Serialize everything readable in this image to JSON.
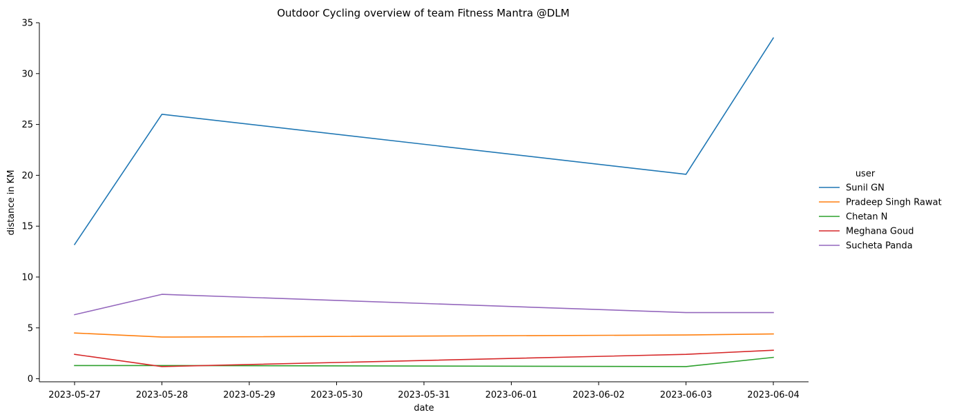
{
  "chart_data": {
    "type": "line",
    "title": "Outdoor Cycling overview of team Fitness Mantra @DLM",
    "xlabel": "date",
    "ylabel": "distance in KM",
    "x": [
      "2023-05-27",
      "2023-05-28",
      "2023-05-29",
      "2023-05-30",
      "2023-05-31",
      "2023-06-01",
      "2023-06-02",
      "2023-06-03",
      "2023-06-04"
    ],
    "x_tick_labels": [
      "2023-05-27",
      "2023-05-28",
      "2023-05-29",
      "2023-05-30",
      "2023-05-31",
      "2023-06-01",
      "2023-06-02",
      "2023-06-03",
      "2023-06-04"
    ],
    "y_ticks": [
      0,
      5,
      10,
      15,
      20,
      25,
      30,
      35
    ],
    "ylim": [
      -0.3,
      35
    ],
    "grid": false,
    "legend": {
      "title": "user",
      "placement": "right"
    },
    "series": [
      {
        "name": "Sunil GN",
        "color": "#1f77b4",
        "points": [
          {
            "x": "2023-05-27",
            "y": 13.2
          },
          {
            "x": "2023-05-28",
            "y": 26.0
          },
          {
            "x": "2023-06-03",
            "y": 20.1
          },
          {
            "x": "2023-06-04",
            "y": 33.5
          }
        ]
      },
      {
        "name": "Pradeep Singh Rawat",
        "color": "#ff7f0e",
        "points": [
          {
            "x": "2023-05-27",
            "y": 4.5
          },
          {
            "x": "2023-05-28",
            "y": 4.1
          },
          {
            "x": "2023-06-03",
            "y": 4.3
          },
          {
            "x": "2023-06-04",
            "y": 4.4
          }
        ]
      },
      {
        "name": "Chetan N",
        "color": "#2ca02c",
        "points": [
          {
            "x": "2023-05-27",
            "y": 1.3
          },
          {
            "x": "2023-05-28",
            "y": 1.3
          },
          {
            "x": "2023-06-03",
            "y": 1.2
          },
          {
            "x": "2023-06-04",
            "y": 2.1
          }
        ]
      },
      {
        "name": "Meghana Goud",
        "color": "#d62728",
        "points": [
          {
            "x": "2023-05-27",
            "y": 2.4
          },
          {
            "x": "2023-05-28",
            "y": 1.2
          },
          {
            "x": "2023-06-03",
            "y": 2.4
          },
          {
            "x": "2023-06-04",
            "y": 2.8
          }
        ]
      },
      {
        "name": "Sucheta Panda",
        "color": "#9467bd",
        "points": [
          {
            "x": "2023-05-27",
            "y": 6.3
          },
          {
            "x": "2023-05-28",
            "y": 8.3
          },
          {
            "x": "2023-06-03",
            "y": 6.5
          },
          {
            "x": "2023-06-04",
            "y": 6.5
          }
        ]
      }
    ]
  }
}
